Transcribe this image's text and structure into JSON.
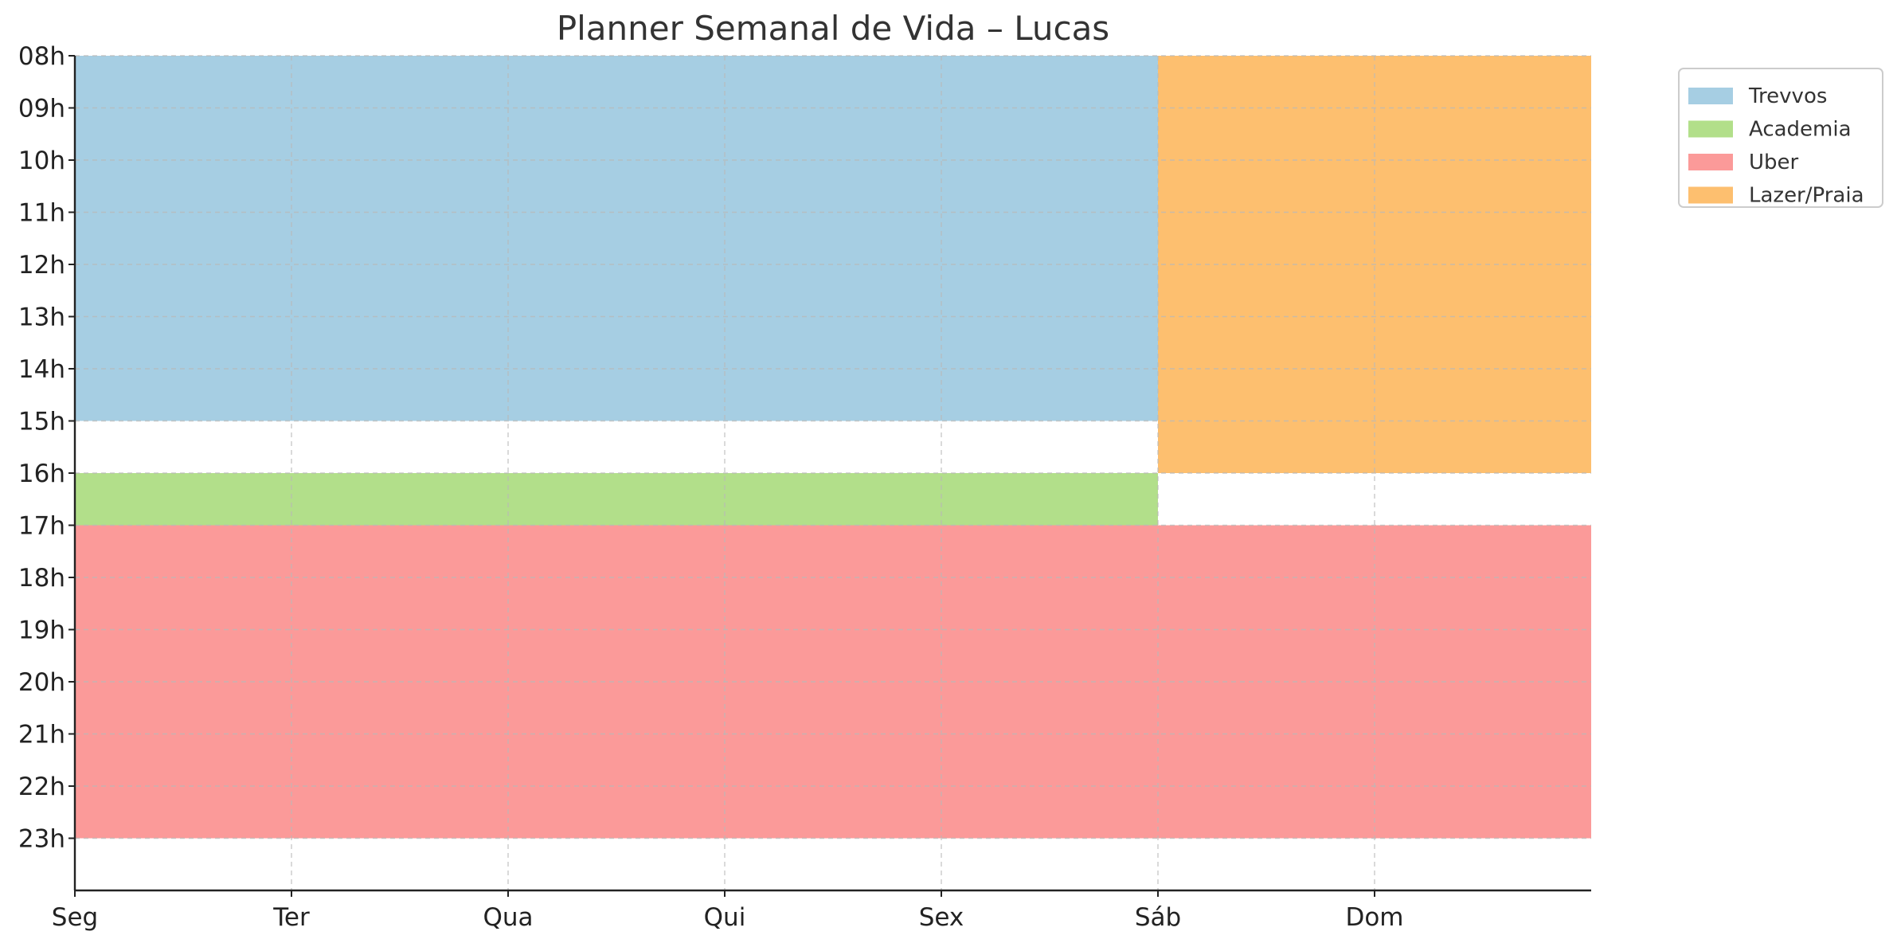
{
  "chart_data": {
    "type": "bar",
    "title": "Planner Semanal de Vida – Lucas",
    "xlabel": "",
    "ylabel": "",
    "x_categories": [
      "Seg",
      "Ter",
      "Qua",
      "Qui",
      "Sex",
      "Sáb",
      "Dom"
    ],
    "y_tick_labels": [
      "08h",
      "09h",
      "10h",
      "11h",
      "12h",
      "13h",
      "14h",
      "15h",
      "16h",
      "17h",
      "18h",
      "19h",
      "20h",
      "21h",
      "22h",
      "23h"
    ],
    "y_ticks": [
      8,
      9,
      10,
      11,
      12,
      13,
      14,
      15,
      16,
      17,
      18,
      19,
      20,
      21,
      22,
      23
    ],
    "xlim": [
      0,
      7
    ],
    "ylim": [
      24,
      8
    ],
    "grid": true,
    "legend_position": "outside-top-right",
    "series": [
      {
        "name": "Trevvos",
        "color": "#a6cee3",
        "blocks": [
          {
            "day_start": 0,
            "day_end": 5,
            "hour_start": 8,
            "hour_end": 15
          }
        ]
      },
      {
        "name": "Academia",
        "color": "#b2df8a",
        "blocks": [
          {
            "day_start": 0,
            "day_end": 5,
            "hour_start": 16,
            "hour_end": 17
          }
        ]
      },
      {
        "name": "Uber",
        "color": "#fb9a99",
        "blocks": [
          {
            "day_start": 0,
            "day_end": 7,
            "hour_start": 17,
            "hour_end": 23
          }
        ]
      },
      {
        "name": "Lazer/Praia",
        "color": "#fdbf6f",
        "blocks": [
          {
            "day_start": 5,
            "day_end": 7,
            "hour_start": 8,
            "hour_end": 16
          }
        ]
      }
    ]
  }
}
